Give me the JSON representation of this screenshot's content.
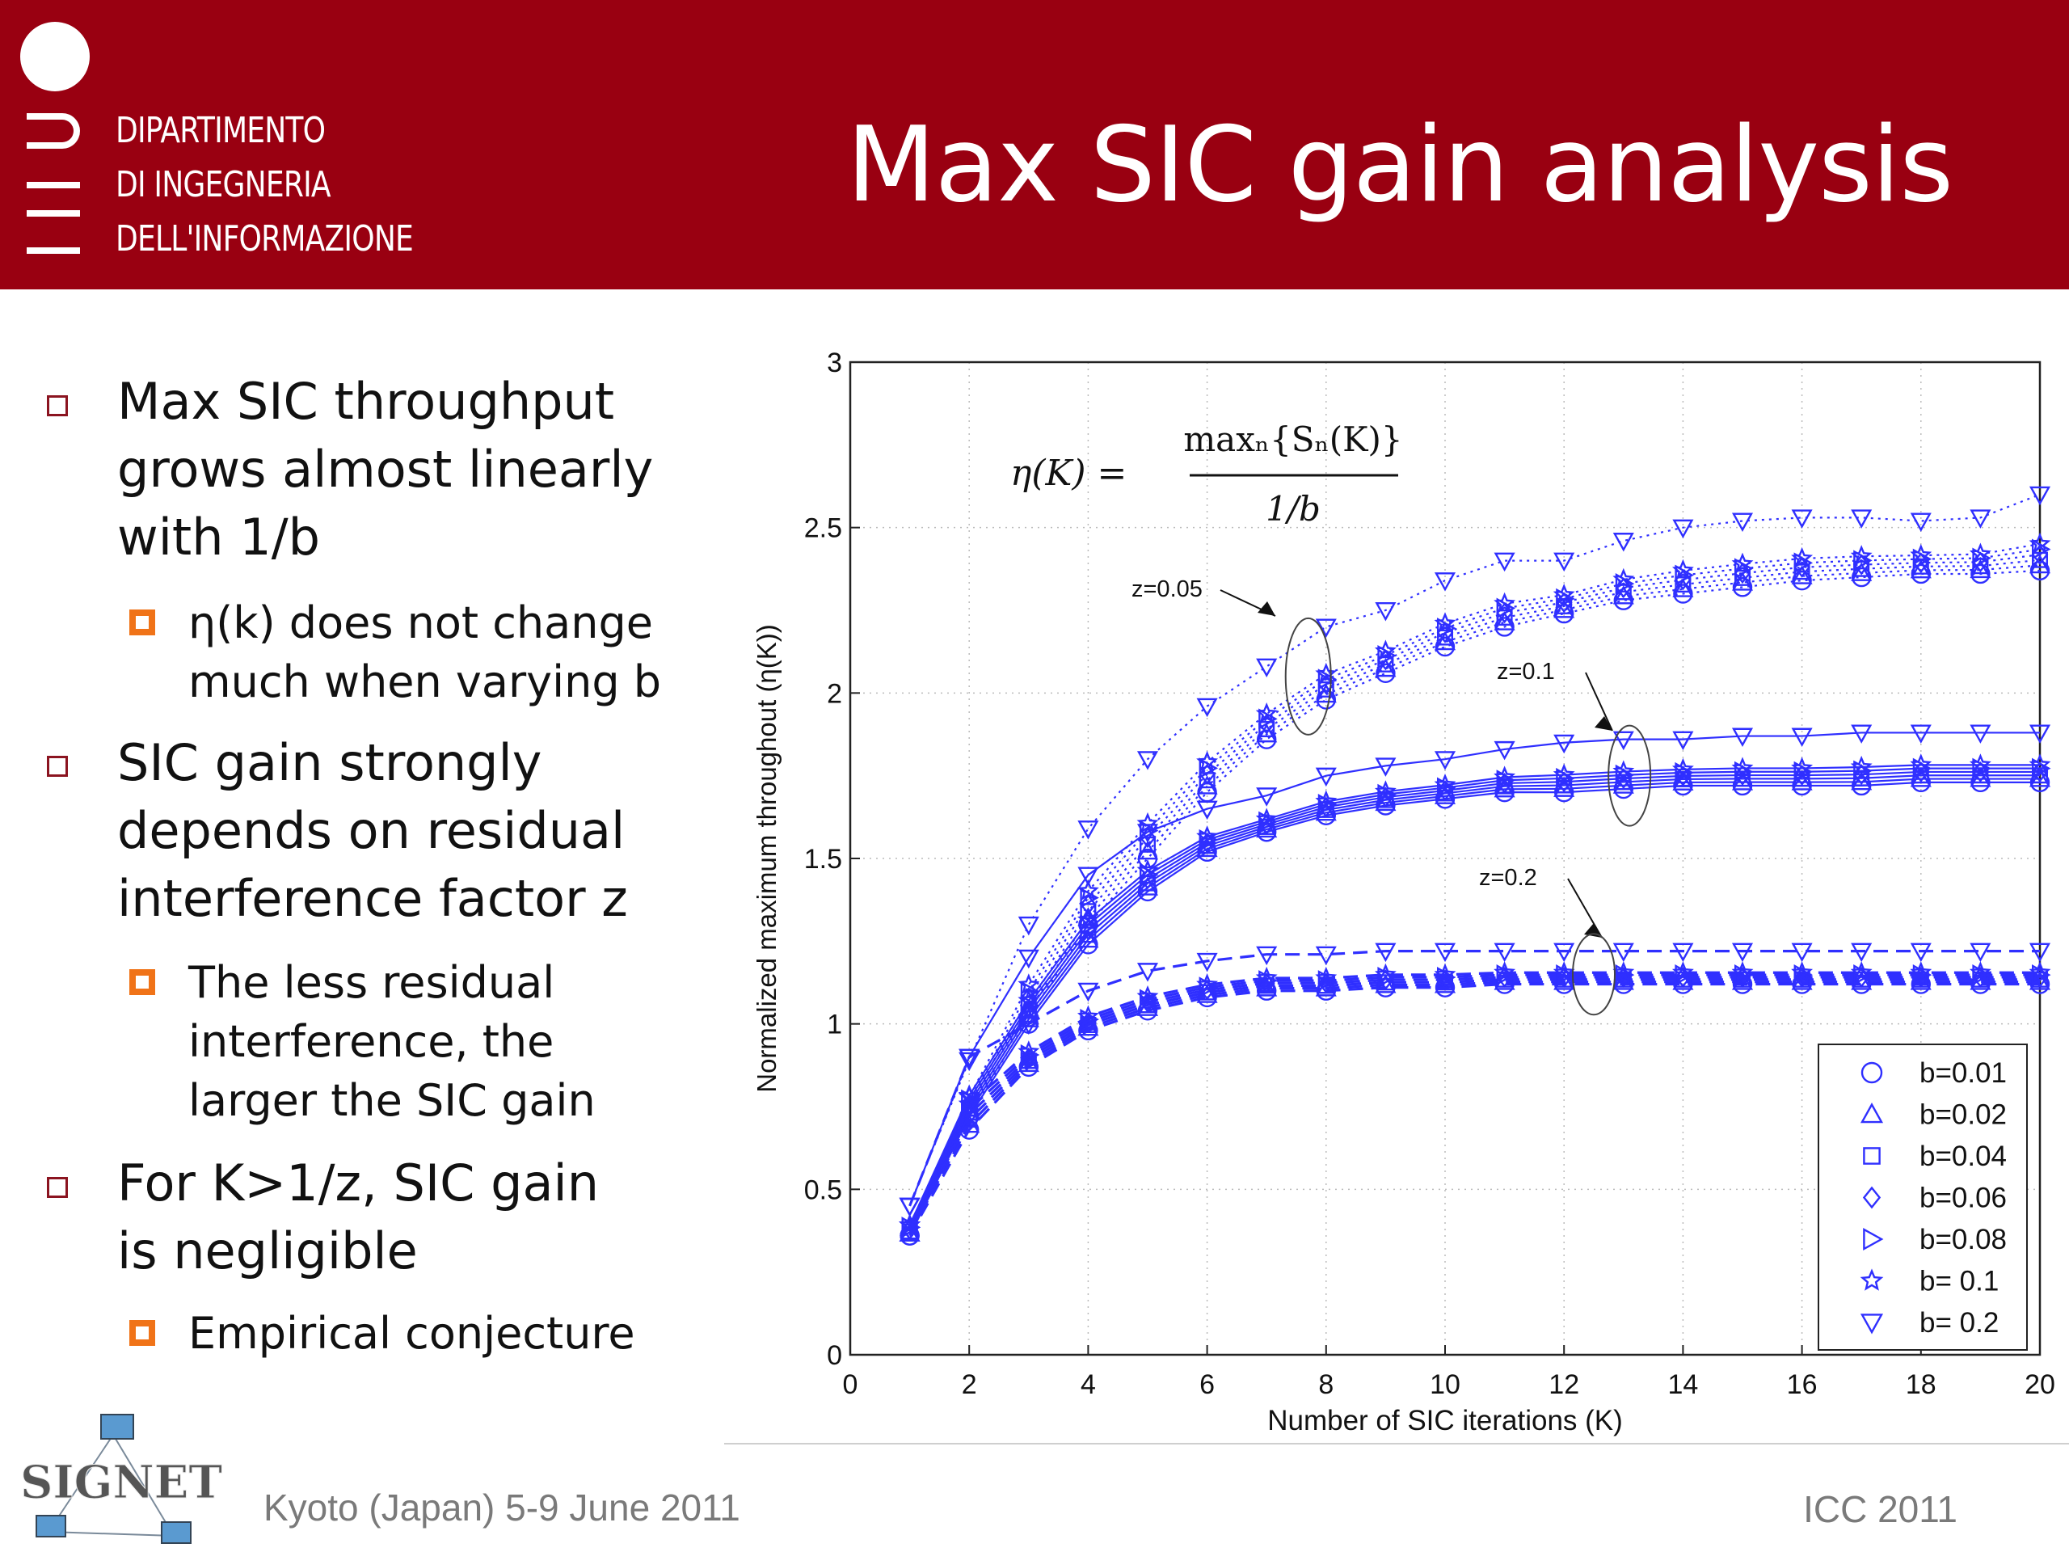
{
  "header": {
    "dept_lines": [
      "DIPARTIMENTO",
      "DI INGEGNERIA",
      "DELL'INFORMAZIONE"
    ],
    "title": "Max SIC gain analysis",
    "background": "#990011"
  },
  "bullets": [
    {
      "text": "Max SIC throughput\ngrows almost linearly\nwith 1/b",
      "sub": [
        "η(k) does not change\nmuch when varying b"
      ]
    },
    {
      "text": "SIC gain strongly\ndepends on residual\ninterference factor z",
      "sub": [
        "The less residual\ninterference, the\nlarger the SIC gain"
      ]
    },
    {
      "text": "For K>1/z, SIC gain\nis negligible",
      "sub": [
        "Empirical conjecture"
      ]
    }
  ],
  "chart_data": {
    "type": "line",
    "xlabel": "Number of SIC iterations (K)",
    "ylabel": "Normalized maximum throughout (η(K))",
    "xlim": [
      0,
      20
    ],
    "ylim": [
      0,
      3
    ],
    "xticks": [
      0,
      2,
      4,
      6,
      8,
      10,
      12,
      14,
      16,
      18,
      20
    ],
    "yticks": [
      0,
      0.5,
      1,
      1.5,
      2,
      2.5,
      3
    ],
    "grid": true,
    "color": "#2f2fff",
    "formula": {
      "lhs": "η(K) =",
      "num": "maxₙ{Sₙ(K)}",
      "den": "1/b"
    },
    "legend_position": "bottom-right",
    "legend": [
      {
        "label": "b=0.01",
        "marker": "circle"
      },
      {
        "label": "b=0.02",
        "marker": "triangle-up"
      },
      {
        "label": "b=0.04",
        "marker": "square"
      },
      {
        "label": "b=0.06",
        "marker": "diamond"
      },
      {
        "label": "b=0.08",
        "marker": "triangle-right"
      },
      {
        "label": "b= 0.1",
        "marker": "star"
      },
      {
        "label": "b= 0.2",
        "marker": "triangle-down"
      }
    ],
    "annotations": [
      "z=0.05",
      "z=0.1",
      "z=0.2"
    ],
    "x": [
      1,
      2,
      3,
      4,
      5,
      6,
      7,
      8,
      9,
      10,
      11,
      12,
      13,
      14,
      15,
      16,
      17,
      18,
      19,
      20
    ],
    "groups": [
      {
        "z": "0.05",
        "style": "dotted",
        "top": [
          0.45,
          0.89,
          1.3,
          1.59,
          1.8,
          1.96,
          2.08,
          2.2,
          2.25,
          2.34,
          2.4,
          2.4,
          2.46,
          2.5,
          2.52,
          2.53,
          2.53,
          2.52,
          2.53,
          2.6
        ],
        "bottom": [
          0.36,
          0.72,
          1.02,
          1.3,
          1.5,
          1.7,
          1.86,
          1.98,
          2.06,
          2.14,
          2.2,
          2.24,
          2.28,
          2.3,
          2.32,
          2.34,
          2.35,
          2.36,
          2.36,
          2.37
        ]
      },
      {
        "z": "0.1",
        "style": "solid",
        "top": [
          0.45,
          0.9,
          1.2,
          1.45,
          1.58,
          1.65,
          1.69,
          1.75,
          1.78,
          1.8,
          1.83,
          1.85,
          1.86,
          1.86,
          1.87,
          1.87,
          1.88,
          1.88,
          1.88,
          1.88
        ],
        "bottom": [
          0.36,
          0.72,
          1.0,
          1.24,
          1.4,
          1.52,
          1.58,
          1.63,
          1.66,
          1.68,
          1.7,
          1.7,
          1.71,
          1.72,
          1.72,
          1.72,
          1.72,
          1.73,
          1.73,
          1.73
        ]
      },
      {
        "z": "0.2",
        "style": "dashed",
        "top": [
          0.45,
          0.9,
          1.0,
          1.1,
          1.16,
          1.19,
          1.21,
          1.21,
          1.22,
          1.22,
          1.22,
          1.22,
          1.22,
          1.22,
          1.22,
          1.22,
          1.22,
          1.22,
          1.22,
          1.22
        ],
        "bottom": [
          0.36,
          0.68,
          0.87,
          0.98,
          1.04,
          1.08,
          1.1,
          1.1,
          1.11,
          1.11,
          1.12,
          1.12,
          1.12,
          1.12,
          1.12,
          1.12,
          1.12,
          1.12,
          1.12,
          1.12
        ]
      }
    ]
  },
  "footer": {
    "left": "Kyoto (Japan) 5-9 June 2011",
    "right": "ICC 2011",
    "logo_text": "SIGNET"
  }
}
